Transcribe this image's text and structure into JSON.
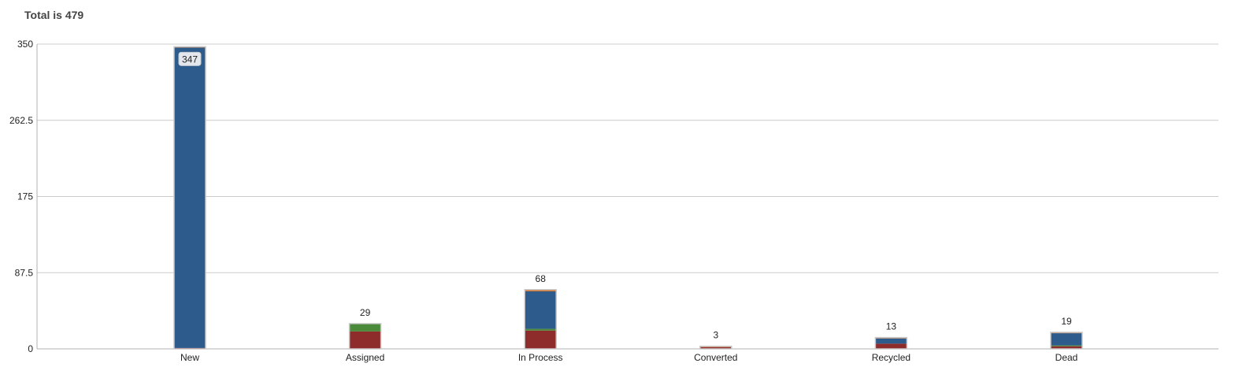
{
  "title": "Total is 479",
  "colors": {
    "blue": "#2d5b8c",
    "red": "#8e2b2b",
    "green": "#4a8a3a",
    "orange": "#d2722c",
    "grid": "#cccccc",
    "axis": "#b0b0b0"
  },
  "chart_data": {
    "type": "bar",
    "stacked": true,
    "categories": [
      "New",
      "Assigned",
      "In Process",
      "Converted",
      "Recycled",
      "Dead"
    ],
    "totals": [
      347,
      29,
      68,
      3,
      13,
      19
    ],
    "series": [
      {
        "color": "red",
        "values": [
          1,
          20,
          21,
          2,
          6,
          3
        ]
      },
      {
        "color": "green",
        "values": [
          0,
          9,
          2,
          0,
          0,
          1
        ]
      },
      {
        "color": "blue",
        "values": [
          345,
          0,
          43,
          0,
          6,
          14
        ]
      },
      {
        "color": "orange",
        "values": [
          1,
          0,
          2,
          1,
          1,
          1
        ]
      }
    ],
    "ylim": [
      0,
      350
    ],
    "yticks": [
      "0",
      "87.5",
      "175",
      "262.5",
      "350"
    ],
    "grid": true,
    "legend": "none"
  }
}
